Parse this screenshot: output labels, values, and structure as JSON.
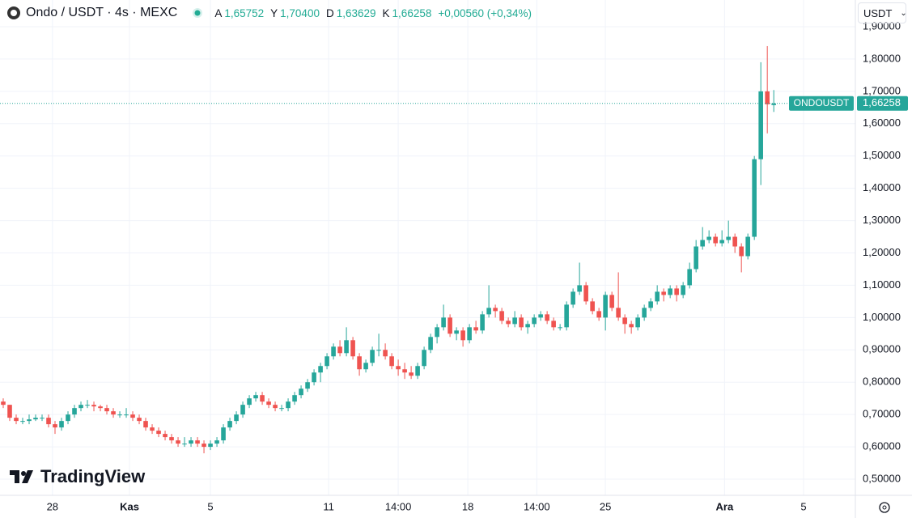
{
  "header": {
    "symbol": "Ondo / USDT · 4s · MEXC",
    "ohlc": [
      {
        "label": "A",
        "value": "1,65752"
      },
      {
        "label": "Y",
        "value": "1,70400"
      },
      {
        "label": "D",
        "value": "1,63629"
      },
      {
        "label": "K",
        "value": "1,66258"
      }
    ],
    "change": "+0,00560 (+0,34%)",
    "currency": "USDT",
    "brand": "TradingView"
  },
  "chart_data": {
    "type": "candlestick",
    "up_color": "#26a69a",
    "down_color": "#ef5350",
    "grid": true,
    "xlim": [
      -0.5,
      131.6
    ],
    "xticks": [
      {
        "value": 7.6,
        "label": "28"
      },
      {
        "value": 19.5,
        "label": "Kas"
      },
      {
        "value": 32,
        "label": "5"
      },
      {
        "value": 50.25,
        "label": "11"
      },
      {
        "value": 61,
        "label": "14:00"
      },
      {
        "value": 71.75,
        "label": "18"
      },
      {
        "value": 82.4,
        "label": "14:00"
      },
      {
        "value": 93,
        "label": "25"
      },
      {
        "value": 111.4,
        "label": "Ara"
      },
      {
        "value": 123.6,
        "label": "5"
      }
    ],
    "ylim": [
      0.5,
      1.9
    ],
    "yticks": [
      {
        "value": 0.5,
        "label": "0,50000"
      },
      {
        "value": 0.6,
        "label": "0,60000"
      },
      {
        "value": 0.7,
        "label": "0,70000"
      },
      {
        "value": 0.8,
        "label": "0,80000"
      },
      {
        "value": 0.9,
        "label": "0,90000"
      },
      {
        "value": 1.0,
        "label": "1,00000"
      },
      {
        "value": 1.1,
        "label": "1,10000"
      },
      {
        "value": 1.2,
        "label": "1,20000"
      },
      {
        "value": 1.3,
        "label": "1,30000"
      },
      {
        "value": 1.4,
        "label": "1,40000"
      },
      {
        "value": 1.5,
        "label": "1,50000"
      },
      {
        "value": 1.6,
        "label": "1,60000"
      },
      {
        "value": 1.7,
        "label": "1,70000"
      },
      {
        "value": 1.8,
        "label": "1,80000"
      },
      {
        "value": 1.9,
        "label": "1,90000"
      }
    ],
    "last_price": {
      "value": 1.66258,
      "label": "1,66258"
    },
    "price_label": "ONDOUSDT",
    "candles": [
      [
        0.74,
        0.75,
        0.72,
        0.73
      ],
      [
        0.73,
        0.73,
        0.68,
        0.69
      ],
      [
        0.69,
        0.7,
        0.67,
        0.68
      ],
      [
        0.68,
        0.69,
        0.67,
        0.68
      ],
      [
        0.68,
        0.7,
        0.67,
        0.685
      ],
      [
        0.685,
        0.7,
        0.68,
        0.69
      ],
      [
        0.69,
        0.7,
        0.68,
        0.69
      ],
      [
        0.69,
        0.7,
        0.66,
        0.67
      ],
      [
        0.67,
        0.68,
        0.64,
        0.66
      ],
      [
        0.66,
        0.69,
        0.65,
        0.68
      ],
      [
        0.68,
        0.71,
        0.67,
        0.7
      ],
      [
        0.7,
        0.73,
        0.69,
        0.72
      ],
      [
        0.72,
        0.74,
        0.71,
        0.73
      ],
      [
        0.73,
        0.745,
        0.72,
        0.73
      ],
      [
        0.73,
        0.74,
        0.71,
        0.725
      ],
      [
        0.725,
        0.73,
        0.71,
        0.72
      ],
      [
        0.72,
        0.73,
        0.7,
        0.71
      ],
      [
        0.71,
        0.72,
        0.69,
        0.7
      ],
      [
        0.7,
        0.71,
        0.69,
        0.7
      ],
      [
        0.7,
        0.72,
        0.69,
        0.7
      ],
      [
        0.7,
        0.71,
        0.68,
        0.69
      ],
      [
        0.69,
        0.7,
        0.67,
        0.68
      ],
      [
        0.68,
        0.69,
        0.65,
        0.66
      ],
      [
        0.66,
        0.67,
        0.64,
        0.65
      ],
      [
        0.65,
        0.66,
        0.63,
        0.64
      ],
      [
        0.64,
        0.65,
        0.62,
        0.63
      ],
      [
        0.63,
        0.64,
        0.61,
        0.62
      ],
      [
        0.62,
        0.63,
        0.6,
        0.61
      ],
      [
        0.61,
        0.63,
        0.6,
        0.61
      ],
      [
        0.61,
        0.63,
        0.6,
        0.62
      ],
      [
        0.62,
        0.63,
        0.6,
        0.61
      ],
      [
        0.61,
        0.62,
        0.58,
        0.6
      ],
      [
        0.6,
        0.62,
        0.59,
        0.61
      ],
      [
        0.61,
        0.63,
        0.6,
        0.62
      ],
      [
        0.62,
        0.67,
        0.61,
        0.66
      ],
      [
        0.66,
        0.69,
        0.65,
        0.68
      ],
      [
        0.68,
        0.71,
        0.67,
        0.7
      ],
      [
        0.7,
        0.74,
        0.69,
        0.73
      ],
      [
        0.73,
        0.76,
        0.72,
        0.75
      ],
      [
        0.75,
        0.77,
        0.74,
        0.76
      ],
      [
        0.76,
        0.77,
        0.73,
        0.74
      ],
      [
        0.74,
        0.75,
        0.72,
        0.73
      ],
      [
        0.73,
        0.74,
        0.71,
        0.72
      ],
      [
        0.72,
        0.73,
        0.71,
        0.72
      ],
      [
        0.72,
        0.75,
        0.71,
        0.74
      ],
      [
        0.74,
        0.77,
        0.73,
        0.76
      ],
      [
        0.76,
        0.79,
        0.75,
        0.78
      ],
      [
        0.78,
        0.81,
        0.77,
        0.8
      ],
      [
        0.8,
        0.84,
        0.79,
        0.83
      ],
      [
        0.83,
        0.86,
        0.8,
        0.85
      ],
      [
        0.85,
        0.89,
        0.84,
        0.88
      ],
      [
        0.88,
        0.92,
        0.87,
        0.91
      ],
      [
        0.91,
        0.93,
        0.88,
        0.89
      ],
      [
        0.89,
        0.97,
        0.88,
        0.93
      ],
      [
        0.93,
        0.94,
        0.87,
        0.88
      ],
      [
        0.88,
        0.89,
        0.82,
        0.84
      ],
      [
        0.84,
        0.87,
        0.83,
        0.86
      ],
      [
        0.86,
        0.91,
        0.85,
        0.9
      ],
      [
        0.9,
        0.95,
        0.88,
        0.9
      ],
      [
        0.9,
        0.92,
        0.87,
        0.88
      ],
      [
        0.88,
        0.89,
        0.84,
        0.85
      ],
      [
        0.85,
        0.87,
        0.82,
        0.84
      ],
      [
        0.84,
        0.86,
        0.81,
        0.83
      ],
      [
        0.83,
        0.85,
        0.81,
        0.82
      ],
      [
        0.82,
        0.86,
        0.81,
        0.85
      ],
      [
        0.85,
        0.91,
        0.84,
        0.9
      ],
      [
        0.9,
        0.95,
        0.89,
        0.94
      ],
      [
        0.94,
        0.98,
        0.92,
        0.97
      ],
      [
        0.97,
        1.04,
        0.96,
        1.0
      ],
      [
        1.0,
        1.01,
        0.94,
        0.95
      ],
      [
        0.95,
        0.97,
        0.93,
        0.96
      ],
      [
        0.96,
        0.97,
        0.91,
        0.93
      ],
      [
        0.93,
        0.98,
        0.92,
        0.97
      ],
      [
        0.97,
        0.99,
        0.95,
        0.96
      ],
      [
        0.96,
        1.02,
        0.95,
        1.01
      ],
      [
        1.01,
        1.1,
        1.0,
        1.03
      ],
      [
        1.03,
        1.04,
        1.0,
        1.02
      ],
      [
        1.02,
        1.03,
        0.98,
        0.99
      ],
      [
        0.99,
        1.0,
        0.97,
        0.98
      ],
      [
        0.98,
        1.02,
        0.97,
        1.0
      ],
      [
        1.0,
        1.01,
        0.96,
        0.97
      ],
      [
        0.97,
        0.99,
        0.95,
        0.98
      ],
      [
        0.98,
        1.01,
        0.97,
        1.0
      ],
      [
        1.0,
        1.02,
        0.99,
        1.01
      ],
      [
        1.01,
        1.02,
        0.98,
        0.99
      ],
      [
        0.99,
        1.0,
        0.96,
        0.97
      ],
      [
        0.97,
        0.98,
        0.96,
        0.97
      ],
      [
        0.97,
        1.05,
        0.96,
        1.04
      ],
      [
        1.04,
        1.09,
        1.03,
        1.08
      ],
      [
        1.08,
        1.17,
        1.07,
        1.1
      ],
      [
        1.1,
        1.11,
        1.04,
        1.05
      ],
      [
        1.05,
        1.06,
        1.01,
        1.02
      ],
      [
        1.02,
        1.03,
        0.99,
        1.0
      ],
      [
        1.0,
        1.08,
        0.96,
        1.07
      ],
      [
        1.07,
        1.08,
        1.02,
        1.03
      ],
      [
        1.03,
        1.14,
        0.99,
        1.0
      ],
      [
        1.0,
        1.01,
        0.95,
        0.98
      ],
      [
        0.98,
        0.99,
        0.95,
        0.97
      ],
      [
        0.97,
        1.01,
        0.96,
        1.0
      ],
      [
        1.0,
        1.04,
        0.99,
        1.03
      ],
      [
        1.03,
        1.06,
        1.02,
        1.05
      ],
      [
        1.05,
        1.1,
        1.04,
        1.08
      ],
      [
        1.08,
        1.09,
        1.05,
        1.07
      ],
      [
        1.07,
        1.1,
        1.06,
        1.09
      ],
      [
        1.09,
        1.1,
        1.05,
        1.07
      ],
      [
        1.07,
        1.11,
        1.06,
        1.1
      ],
      [
        1.1,
        1.17,
        1.09,
        1.15
      ],
      [
        1.15,
        1.24,
        1.14,
        1.22
      ],
      [
        1.22,
        1.28,
        1.21,
        1.24
      ],
      [
        1.24,
        1.27,
        1.23,
        1.25
      ],
      [
        1.25,
        1.26,
        1.22,
        1.23
      ],
      [
        1.23,
        1.27,
        1.22,
        1.24
      ],
      [
        1.24,
        1.3,
        1.23,
        1.25
      ],
      [
        1.25,
        1.26,
        1.2,
        1.22
      ],
      [
        1.22,
        1.23,
        1.14,
        1.19
      ],
      [
        1.19,
        1.26,
        1.18,
        1.25
      ],
      [
        1.25,
        1.5,
        1.24,
        1.49
      ],
      [
        1.49,
        1.79,
        1.41,
        1.7
      ],
      [
        1.7,
        1.84,
        1.57,
        1.66
      ],
      [
        1.65752,
        1.704,
        1.63629,
        1.66258
      ]
    ]
  }
}
